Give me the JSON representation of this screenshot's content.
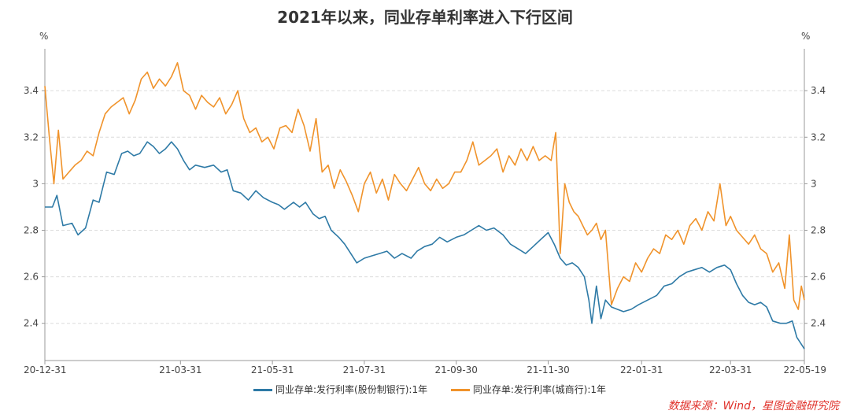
{
  "chart_data": {
    "type": "line",
    "title": "2021年以来，同业存单利率进入下行区间",
    "y_unit_left": "%",
    "y_unit_right": "%",
    "ylim": [
      2.24,
      3.58
    ],
    "yticks": [
      "2.4",
      "2.6",
      "2.8",
      "3",
      "3.2",
      "3.4"
    ],
    "ytick_values": [
      2.4,
      2.6,
      2.8,
      3.0,
      3.2,
      3.4
    ],
    "xticks": [
      "20-12-31",
      "21-03-31",
      "21-05-31",
      "21-07-31",
      "21-09-30",
      "21-11-30",
      "22-01-31",
      "22-03-31",
      "22-05-19"
    ],
    "xtick_dates": [
      "2020-12-31",
      "2021-03-31",
      "2021-05-31",
      "2021-07-31",
      "2021-09-30",
      "2021-11-30",
      "2022-01-31",
      "2022-03-31",
      "2022-05-19"
    ],
    "grid": "horizontal",
    "legend_position": "bottom",
    "series": [
      {
        "name": "同业存单:发行利率(股份制银行):1年",
        "color": "#2e7aa6",
        "points": [
          [
            "2020-12-31",
            2.9
          ],
          [
            "2021-01-05",
            2.9
          ],
          [
            "2021-01-08",
            2.95
          ],
          [
            "2021-01-12",
            2.82
          ],
          [
            "2021-01-18",
            2.83
          ],
          [
            "2021-01-22",
            2.78
          ],
          [
            "2021-01-27",
            2.81
          ],
          [
            "2021-02-01",
            2.93
          ],
          [
            "2021-02-05",
            2.92
          ],
          [
            "2021-02-10",
            3.05
          ],
          [
            "2021-02-15",
            3.04
          ],
          [
            "2021-02-20",
            3.13
          ],
          [
            "2021-02-24",
            3.14
          ],
          [
            "2021-02-28",
            3.12
          ],
          [
            "2021-03-04",
            3.13
          ],
          [
            "2021-03-09",
            3.18
          ],
          [
            "2021-03-13",
            3.16
          ],
          [
            "2021-03-17",
            3.13
          ],
          [
            "2021-03-21",
            3.15
          ],
          [
            "2021-03-25",
            3.18
          ],
          [
            "2021-03-29",
            3.15
          ],
          [
            "2021-04-02",
            3.1
          ],
          [
            "2021-04-06",
            3.06
          ],
          [
            "2021-04-10",
            3.08
          ],
          [
            "2021-04-16",
            3.07
          ],
          [
            "2021-04-22",
            3.08
          ],
          [
            "2021-04-27",
            3.05
          ],
          [
            "2021-05-01",
            3.06
          ],
          [
            "2021-05-05",
            2.97
          ],
          [
            "2021-05-10",
            2.96
          ],
          [
            "2021-05-15",
            2.93
          ],
          [
            "2021-05-20",
            2.97
          ],
          [
            "2021-05-25",
            2.94
          ],
          [
            "2021-05-31",
            2.92
          ],
          [
            "2021-06-04",
            2.91
          ],
          [
            "2021-06-08",
            2.89
          ],
          [
            "2021-06-14",
            2.92
          ],
          [
            "2021-06-18",
            2.9
          ],
          [
            "2021-06-22",
            2.92
          ],
          [
            "2021-06-27",
            2.87
          ],
          [
            "2021-07-01",
            2.85
          ],
          [
            "2021-07-05",
            2.86
          ],
          [
            "2021-07-09",
            2.8
          ],
          [
            "2021-07-14",
            2.77
          ],
          [
            "2021-07-18",
            2.74
          ],
          [
            "2021-07-22",
            2.7
          ],
          [
            "2021-07-26",
            2.66
          ],
          [
            "2021-07-31",
            2.68
          ],
          [
            "2021-08-05",
            2.69
          ],
          [
            "2021-08-10",
            2.7
          ],
          [
            "2021-08-15",
            2.71
          ],
          [
            "2021-08-20",
            2.68
          ],
          [
            "2021-08-25",
            2.7
          ],
          [
            "2021-08-31",
            2.68
          ],
          [
            "2021-09-04",
            2.71
          ],
          [
            "2021-09-09",
            2.73
          ],
          [
            "2021-09-14",
            2.74
          ],
          [
            "2021-09-19",
            2.77
          ],
          [
            "2021-09-24",
            2.75
          ],
          [
            "2021-09-30",
            2.77
          ],
          [
            "2021-10-05",
            2.78
          ],
          [
            "2021-10-10",
            2.8
          ],
          [
            "2021-10-15",
            2.82
          ],
          [
            "2021-10-20",
            2.8
          ],
          [
            "2021-10-25",
            2.81
          ],
          [
            "2021-10-31",
            2.78
          ],
          [
            "2021-11-05",
            2.74
          ],
          [
            "2021-11-10",
            2.72
          ],
          [
            "2021-11-15",
            2.7
          ],
          [
            "2021-11-20",
            2.73
          ],
          [
            "2021-11-25",
            2.76
          ],
          [
            "2021-11-30",
            2.79
          ],
          [
            "2021-12-04",
            2.74
          ],
          [
            "2021-12-08",
            2.68
          ],
          [
            "2021-12-12",
            2.65
          ],
          [
            "2021-12-16",
            2.66
          ],
          [
            "2021-12-20",
            2.64
          ],
          [
            "2021-12-24",
            2.6
          ],
          [
            "2021-12-27",
            2.5
          ],
          [
            "2021-12-29",
            2.4
          ],
          [
            "2022-01-01",
            2.56
          ],
          [
            "2022-01-04",
            2.42
          ],
          [
            "2022-01-07",
            2.5
          ],
          [
            "2022-01-11",
            2.47
          ],
          [
            "2022-01-15",
            2.46
          ],
          [
            "2022-01-19",
            2.45
          ],
          [
            "2022-01-24",
            2.46
          ],
          [
            "2022-01-29",
            2.48
          ],
          [
            "2022-02-04",
            2.5
          ],
          [
            "2022-02-10",
            2.52
          ],
          [
            "2022-02-15",
            2.56
          ],
          [
            "2022-02-20",
            2.57
          ],
          [
            "2022-02-25",
            2.6
          ],
          [
            "2022-03-02",
            2.62
          ],
          [
            "2022-03-07",
            2.63
          ],
          [
            "2022-03-12",
            2.64
          ],
          [
            "2022-03-17",
            2.62
          ],
          [
            "2022-03-22",
            2.64
          ],
          [
            "2022-03-27",
            2.65
          ],
          [
            "2022-03-31",
            2.63
          ],
          [
            "2022-04-04",
            2.57
          ],
          [
            "2022-04-08",
            2.52
          ],
          [
            "2022-04-12",
            2.49
          ],
          [
            "2022-04-16",
            2.48
          ],
          [
            "2022-04-20",
            2.49
          ],
          [
            "2022-04-24",
            2.47
          ],
          [
            "2022-04-28",
            2.41
          ],
          [
            "2022-05-03",
            2.4
          ],
          [
            "2022-05-07",
            2.4
          ],
          [
            "2022-05-11",
            2.41
          ],
          [
            "2022-05-14",
            2.34
          ],
          [
            "2022-05-17",
            2.31
          ],
          [
            "2022-05-19",
            2.29
          ]
        ]
      },
      {
        "name": "同业存单:发行利率(城商行):1年",
        "color": "#f0932b",
        "points": [
          [
            "2020-12-31",
            3.42
          ],
          [
            "2021-01-03",
            3.2
          ],
          [
            "2021-01-06",
            3.0
          ],
          [
            "2021-01-09",
            3.23
          ],
          [
            "2021-01-12",
            3.02
          ],
          [
            "2021-01-16",
            3.05
          ],
          [
            "2021-01-20",
            3.08
          ],
          [
            "2021-01-24",
            3.1
          ],
          [
            "2021-01-28",
            3.14
          ],
          [
            "2021-02-01",
            3.12
          ],
          [
            "2021-02-05",
            3.22
          ],
          [
            "2021-02-09",
            3.3
          ],
          [
            "2021-02-13",
            3.33
          ],
          [
            "2021-02-17",
            3.35
          ],
          [
            "2021-02-21",
            3.37
          ],
          [
            "2021-02-25",
            3.3
          ],
          [
            "2021-03-01",
            3.36
          ],
          [
            "2021-03-05",
            3.45
          ],
          [
            "2021-03-09",
            3.48
          ],
          [
            "2021-03-13",
            3.41
          ],
          [
            "2021-03-17",
            3.45
          ],
          [
            "2021-03-21",
            3.42
          ],
          [
            "2021-03-25",
            3.46
          ],
          [
            "2021-03-29",
            3.52
          ],
          [
            "2021-04-02",
            3.4
          ],
          [
            "2021-04-06",
            3.38
          ],
          [
            "2021-04-10",
            3.32
          ],
          [
            "2021-04-14",
            3.38
          ],
          [
            "2021-04-18",
            3.35
          ],
          [
            "2021-04-22",
            3.33
          ],
          [
            "2021-04-26",
            3.37
          ],
          [
            "2021-04-30",
            3.3
          ],
          [
            "2021-05-04",
            3.34
          ],
          [
            "2021-05-08",
            3.4
          ],
          [
            "2021-05-12",
            3.28
          ],
          [
            "2021-05-16",
            3.22
          ],
          [
            "2021-05-20",
            3.24
          ],
          [
            "2021-05-24",
            3.18
          ],
          [
            "2021-05-28",
            3.2
          ],
          [
            "2021-06-01",
            3.15
          ],
          [
            "2021-06-05",
            3.24
          ],
          [
            "2021-06-09",
            3.25
          ],
          [
            "2021-06-13",
            3.22
          ],
          [
            "2021-06-17",
            3.32
          ],
          [
            "2021-06-21",
            3.25
          ],
          [
            "2021-06-25",
            3.14
          ],
          [
            "2021-06-29",
            3.28
          ],
          [
            "2021-07-03",
            3.05
          ],
          [
            "2021-07-07",
            3.08
          ],
          [
            "2021-07-11",
            2.98
          ],
          [
            "2021-07-15",
            3.06
          ],
          [
            "2021-07-19",
            3.01
          ],
          [
            "2021-07-23",
            2.95
          ],
          [
            "2021-07-27",
            2.88
          ],
          [
            "2021-07-31",
            3.0
          ],
          [
            "2021-08-04",
            3.05
          ],
          [
            "2021-08-08",
            2.96
          ],
          [
            "2021-08-12",
            3.02
          ],
          [
            "2021-08-16",
            2.93
          ],
          [
            "2021-08-20",
            3.04
          ],
          [
            "2021-08-24",
            3.0
          ],
          [
            "2021-08-28",
            2.97
          ],
          [
            "2021-09-01",
            3.02
          ],
          [
            "2021-09-05",
            3.07
          ],
          [
            "2021-09-09",
            3.0
          ],
          [
            "2021-09-13",
            2.97
          ],
          [
            "2021-09-17",
            3.02
          ],
          [
            "2021-09-21",
            2.98
          ],
          [
            "2021-09-25",
            3.0
          ],
          [
            "2021-09-29",
            3.05
          ],
          [
            "2021-10-03",
            3.05
          ],
          [
            "2021-10-07",
            3.1
          ],
          [
            "2021-10-11",
            3.18
          ],
          [
            "2021-10-15",
            3.08
          ],
          [
            "2021-10-19",
            3.1
          ],
          [
            "2021-10-23",
            3.12
          ],
          [
            "2021-10-27",
            3.15
          ],
          [
            "2021-10-31",
            3.05
          ],
          [
            "2021-11-04",
            3.12
          ],
          [
            "2021-11-08",
            3.08
          ],
          [
            "2021-11-12",
            3.15
          ],
          [
            "2021-11-16",
            3.1
          ],
          [
            "2021-11-20",
            3.16
          ],
          [
            "2021-11-24",
            3.1
          ],
          [
            "2021-11-28",
            3.12
          ],
          [
            "2021-12-02",
            3.1
          ],
          [
            "2021-12-05",
            3.22
          ],
          [
            "2021-12-08",
            2.7
          ],
          [
            "2021-12-11",
            3.0
          ],
          [
            "2021-12-14",
            2.92
          ],
          [
            "2021-12-17",
            2.88
          ],
          [
            "2021-12-20",
            2.86
          ],
          [
            "2021-12-23",
            2.82
          ],
          [
            "2021-12-26",
            2.78
          ],
          [
            "2021-12-29",
            2.8
          ],
          [
            "2022-01-01",
            2.83
          ],
          [
            "2022-01-04",
            2.76
          ],
          [
            "2022-01-07",
            2.8
          ],
          [
            "2022-01-11",
            2.48
          ],
          [
            "2022-01-15",
            2.55
          ],
          [
            "2022-01-19",
            2.6
          ],
          [
            "2022-01-23",
            2.58
          ],
          [
            "2022-01-27",
            2.66
          ],
          [
            "2022-01-31",
            2.62
          ],
          [
            "2022-02-04",
            2.68
          ],
          [
            "2022-02-08",
            2.72
          ],
          [
            "2022-02-12",
            2.7
          ],
          [
            "2022-02-16",
            2.78
          ],
          [
            "2022-02-20",
            2.76
          ],
          [
            "2022-02-24",
            2.8
          ],
          [
            "2022-02-28",
            2.74
          ],
          [
            "2022-03-04",
            2.82
          ],
          [
            "2022-03-08",
            2.85
          ],
          [
            "2022-03-12",
            2.8
          ],
          [
            "2022-03-16",
            2.88
          ],
          [
            "2022-03-20",
            2.84
          ],
          [
            "2022-03-24",
            3.0
          ],
          [
            "2022-03-28",
            2.82
          ],
          [
            "2022-03-31",
            2.86
          ],
          [
            "2022-04-04",
            2.8
          ],
          [
            "2022-04-08",
            2.77
          ],
          [
            "2022-04-12",
            2.74
          ],
          [
            "2022-04-16",
            2.78
          ],
          [
            "2022-04-20",
            2.72
          ],
          [
            "2022-04-24",
            2.7
          ],
          [
            "2022-04-28",
            2.62
          ],
          [
            "2022-05-02",
            2.66
          ],
          [
            "2022-05-06",
            2.55
          ],
          [
            "2022-05-09",
            2.78
          ],
          [
            "2022-05-12",
            2.5
          ],
          [
            "2022-05-15",
            2.46
          ],
          [
            "2022-05-17",
            2.56
          ],
          [
            "2022-05-19",
            2.5
          ]
        ]
      }
    ]
  },
  "source": "数据来源：Wind，星图金融研究院"
}
